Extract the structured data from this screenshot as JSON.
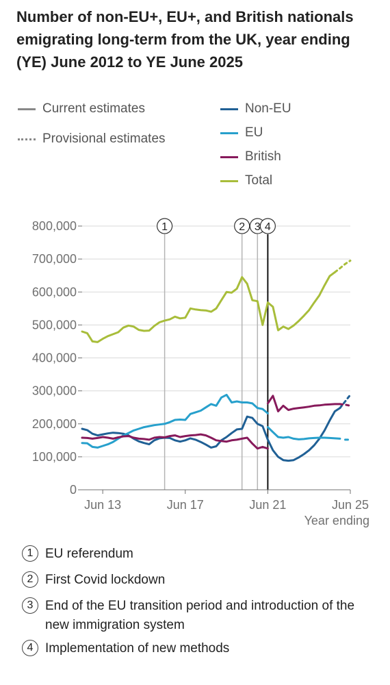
{
  "chart_data": {
    "type": "line",
    "title": "Number of non-EU+, EU+, and British nationals emigrating long-term from the UK, year ending (YE) June 2012 to YE June 2025",
    "xlabel": "Year ending",
    "ylabel": "",
    "xlim": [
      2012.5,
      2025.5
    ],
    "ylim": [
      0,
      800000
    ],
    "yticks": [
      0,
      100000,
      200000,
      300000,
      400000,
      500000,
      600000,
      700000,
      800000
    ],
    "ytick_labels": [
      "0",
      "100,000",
      "200,000",
      "300,000",
      "400,000",
      "500,000",
      "600,000",
      "700,000",
      "800,000"
    ],
    "xticks": [
      2013.5,
      2017.5,
      2021.5,
      2025.5
    ],
    "xtick_labels": [
      "Jun 13",
      "Jun 17",
      "Jun 21",
      "Jun 25"
    ],
    "grid": true,
    "legend_style": {
      "current": "Current estimates",
      "provisional": "Provisional estimates"
    },
    "series": [
      {
        "name": "Non-EU",
        "color": "#206095",
        "current": [
          [
            2012.5,
            185000
          ],
          [
            2012.75,
            181000
          ],
          [
            2013.0,
            170000
          ],
          [
            2013.25,
            165000
          ],
          [
            2013.5,
            168000
          ],
          [
            2013.75,
            171000
          ],
          [
            2014.0,
            173000
          ],
          [
            2014.25,
            172000
          ],
          [
            2014.5,
            170000
          ],
          [
            2014.75,
            165000
          ],
          [
            2015.0,
            155000
          ],
          [
            2015.25,
            147000
          ],
          [
            2015.5,
            142000
          ],
          [
            2015.75,
            138000
          ],
          [
            2016.0,
            150000
          ],
          [
            2016.25,
            156000
          ],
          [
            2016.5,
            158000
          ],
          [
            2016.75,
            157000
          ],
          [
            2017.0,
            150000
          ],
          [
            2017.25,
            146000
          ],
          [
            2017.5,
            150000
          ],
          [
            2017.75,
            156000
          ],
          [
            2018.0,
            152000
          ],
          [
            2018.25,
            145000
          ],
          [
            2018.5,
            137000
          ],
          [
            2018.75,
            128000
          ],
          [
            2019.0,
            132000
          ],
          [
            2019.25,
            150000
          ],
          [
            2019.5,
            160000
          ],
          [
            2019.75,
            172000
          ],
          [
            2020.0,
            183000
          ],
          [
            2020.25,
            185000
          ],
          [
            2020.5,
            222000
          ],
          [
            2020.75,
            218000
          ],
          [
            2021.0,
            200000
          ],
          [
            2021.25,
            193000
          ],
          [
            2021.5,
            152000
          ],
          [
            2021.75,
            120000
          ],
          [
            2022.0,
            100000
          ],
          [
            2022.25,
            90000
          ],
          [
            2022.5,
            88000
          ],
          [
            2022.75,
            90000
          ],
          [
            2023.0,
            98000
          ],
          [
            2023.25,
            108000
          ],
          [
            2023.5,
            120000
          ],
          [
            2023.75,
            135000
          ],
          [
            2024.0,
            155000
          ],
          [
            2024.25,
            180000
          ],
          [
            2024.5,
            210000
          ],
          [
            2024.75,
            238000
          ],
          [
            2025.0,
            248000
          ]
        ],
        "provisional": [
          [
            2025.0,
            248000
          ],
          [
            2025.25,
            268000
          ],
          [
            2025.5,
            288000
          ]
        ]
      },
      {
        "name": "EU",
        "color": "#27a0cc",
        "current": [
          [
            2012.5,
            142000
          ],
          [
            2012.75,
            141000
          ],
          [
            2013.0,
            130000
          ],
          [
            2013.25,
            128000
          ],
          [
            2013.5,
            133000
          ],
          [
            2013.75,
            138000
          ],
          [
            2014.0,
            145000
          ],
          [
            2014.25,
            155000
          ],
          [
            2014.5,
            165000
          ],
          [
            2014.75,
            172000
          ],
          [
            2015.0,
            180000
          ],
          [
            2015.25,
            185000
          ],
          [
            2015.5,
            190000
          ],
          [
            2015.75,
            193000
          ],
          [
            2016.0,
            196000
          ],
          [
            2016.25,
            198000
          ],
          [
            2016.5,
            200000
          ],
          [
            2016.75,
            205000
          ],
          [
            2017.0,
            212000
          ],
          [
            2017.25,
            213000
          ],
          [
            2017.5,
            212000
          ],
          [
            2017.75,
            230000
          ],
          [
            2018.0,
            235000
          ],
          [
            2018.25,
            240000
          ],
          [
            2018.5,
            250000
          ],
          [
            2018.75,
            260000
          ],
          [
            2019.0,
            255000
          ],
          [
            2019.25,
            280000
          ],
          [
            2019.5,
            288000
          ],
          [
            2019.75,
            265000
          ],
          [
            2020.0,
            268000
          ],
          [
            2020.25,
            265000
          ],
          [
            2020.5,
            265000
          ],
          [
            2020.75,
            262000
          ],
          [
            2021.0,
            248000
          ],
          [
            2021.25,
            245000
          ],
          [
            2021.5,
            232000
          ]
        ],
        "current2": [
          [
            2021.5,
            190000
          ],
          [
            2021.75,
            175000
          ],
          [
            2022.0,
            160000
          ],
          [
            2022.25,
            158000
          ],
          [
            2022.5,
            160000
          ],
          [
            2022.75,
            155000
          ],
          [
            2023.0,
            153000
          ],
          [
            2023.25,
            154000
          ],
          [
            2023.5,
            156000
          ],
          [
            2023.75,
            157000
          ],
          [
            2024.0,
            158000
          ],
          [
            2024.25,
            158000
          ],
          [
            2024.5,
            157000
          ],
          [
            2024.75,
            156000
          ],
          [
            2025.0,
            155000
          ]
        ],
        "provisional": [
          [
            2025.25,
            152000
          ],
          [
            2025.5,
            152000
          ]
        ]
      },
      {
        "name": "British",
        "color": "#871a5b",
        "current": [
          [
            2012.5,
            158000
          ],
          [
            2012.75,
            157000
          ],
          [
            2013.0,
            155000
          ],
          [
            2013.25,
            157000
          ],
          [
            2013.5,
            160000
          ],
          [
            2013.75,
            158000
          ],
          [
            2014.0,
            155000
          ],
          [
            2014.25,
            159000
          ],
          [
            2014.5,
            162000
          ],
          [
            2014.75,
            163000
          ],
          [
            2015.0,
            158000
          ],
          [
            2015.25,
            155000
          ],
          [
            2015.5,
            154000
          ],
          [
            2015.75,
            152000
          ],
          [
            2016.0,
            158000
          ],
          [
            2016.25,
            160000
          ],
          [
            2016.5,
            159000
          ],
          [
            2016.75,
            163000
          ],
          [
            2017.0,
            165000
          ],
          [
            2017.25,
            160000
          ],
          [
            2017.5,
            163000
          ],
          [
            2017.75,
            165000
          ],
          [
            2018.0,
            166000
          ],
          [
            2018.25,
            168000
          ],
          [
            2018.5,
            165000
          ],
          [
            2018.75,
            158000
          ],
          [
            2019.0,
            150000
          ],
          [
            2019.25,
            148000
          ],
          [
            2019.5,
            146000
          ],
          [
            2019.75,
            150000
          ],
          [
            2020.0,
            152000
          ],
          [
            2020.25,
            155000
          ],
          [
            2020.5,
            158000
          ],
          [
            2020.75,
            140000
          ],
          [
            2021.0,
            125000
          ],
          [
            2021.25,
            130000
          ],
          [
            2021.5,
            125000
          ]
        ],
        "current2": [
          [
            2021.5,
            262000
          ],
          [
            2021.75,
            285000
          ],
          [
            2022.0,
            238000
          ],
          [
            2022.25,
            255000
          ],
          [
            2022.5,
            242000
          ],
          [
            2022.75,
            246000
          ],
          [
            2023.0,
            248000
          ],
          [
            2023.25,
            250000
          ],
          [
            2023.5,
            252000
          ],
          [
            2023.75,
            255000
          ],
          [
            2024.0,
            256000
          ],
          [
            2024.25,
            258000
          ],
          [
            2024.5,
            259000
          ],
          [
            2024.75,
            260000
          ],
          [
            2025.0,
            260000
          ]
        ],
        "provisional": [
          [
            2025.0,
            260000
          ],
          [
            2025.25,
            258000
          ],
          [
            2025.5,
            255000
          ]
        ]
      },
      {
        "name": "Total",
        "color": "#a8bd3a",
        "current": [
          [
            2012.5,
            480000
          ],
          [
            2012.75,
            475000
          ],
          [
            2013.0,
            450000
          ],
          [
            2013.25,
            448000
          ],
          [
            2013.5,
            458000
          ],
          [
            2013.75,
            466000
          ],
          [
            2014.0,
            472000
          ],
          [
            2014.25,
            478000
          ],
          [
            2014.5,
            492000
          ],
          [
            2014.75,
            498000
          ],
          [
            2015.0,
            495000
          ],
          [
            2015.25,
            485000
          ],
          [
            2015.5,
            482000
          ],
          [
            2015.75,
            483000
          ],
          [
            2016.0,
            497000
          ],
          [
            2016.25,
            508000
          ],
          [
            2016.5,
            513000
          ],
          [
            2016.75,
            517000
          ],
          [
            2017.0,
            525000
          ],
          [
            2017.25,
            520000
          ],
          [
            2017.5,
            522000
          ],
          [
            2017.75,
            550000
          ],
          [
            2018.0,
            547000
          ],
          [
            2018.25,
            545000
          ],
          [
            2018.5,
            544000
          ],
          [
            2018.75,
            540000
          ],
          [
            2019.0,
            550000
          ],
          [
            2019.25,
            575000
          ],
          [
            2019.5,
            600000
          ],
          [
            2019.75,
            598000
          ],
          [
            2020.0,
            610000
          ],
          [
            2020.25,
            645000
          ],
          [
            2020.5,
            625000
          ],
          [
            2020.75,
            575000
          ],
          [
            2021.0,
            572000
          ],
          [
            2021.25,
            500000
          ],
          [
            2021.5,
            568000
          ],
          [
            2021.75,
            555000
          ],
          [
            2022.0,
            484000
          ],
          [
            2022.25,
            495000
          ],
          [
            2022.5,
            488000
          ],
          [
            2022.75,
            498000
          ],
          [
            2023.0,
            512000
          ],
          [
            2023.25,
            528000
          ],
          [
            2023.5,
            545000
          ],
          [
            2023.75,
            568000
          ],
          [
            2024.0,
            590000
          ],
          [
            2024.25,
            620000
          ],
          [
            2024.5,
            648000
          ],
          [
            2024.75,
            660000
          ]
        ],
        "provisional": [
          [
            2024.75,
            660000
          ],
          [
            2025.0,
            672000
          ],
          [
            2025.25,
            685000
          ],
          [
            2025.5,
            695000
          ]
        ]
      }
    ],
    "annotations": [
      {
        "label": "1",
        "x": 2016.5,
        "color": "#b4b4b4",
        "bold": false,
        "text": "EU referendum"
      },
      {
        "label": "2",
        "x": 2020.25,
        "color": "#b4b4b4",
        "bold": false,
        "text": "First Covid lockdown"
      },
      {
        "label": "3",
        "x": 2021.0,
        "color": "#b4b4b4",
        "bold": false,
        "text": "End of the EU transition period and introduction of the new immigration system"
      },
      {
        "label": "4",
        "x": 2021.5,
        "color": "#111111",
        "bold": true,
        "text": "Implementation of new methods"
      }
    ]
  }
}
